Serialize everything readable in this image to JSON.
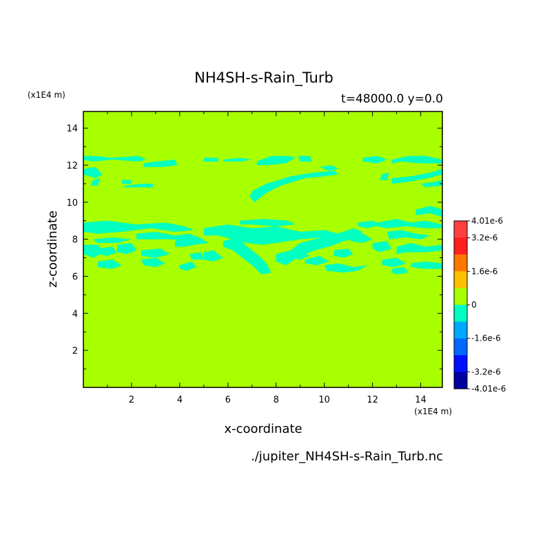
{
  "chart_data": {
    "type": "heatmap",
    "title": "NH4SH-s-Rain_Turb",
    "subtitle": "t=48000.0 y=0.0",
    "xlabel": "x-coordinate",
    "ylabel": "z-coordinate",
    "x_unit": "(x1E4 m)",
    "y_unit": "(x1E4 m)",
    "xlim": [
      0.0,
      14.9
    ],
    "ylim": [
      0.0,
      14.9
    ],
    "x_ticks": [
      2,
      4,
      6,
      8,
      10,
      12,
      14
    ],
    "y_ticks": [
      2,
      4,
      6,
      8,
      10,
      12,
      14
    ],
    "source_file": "./jupiter_NH4SH-s-Rain_Turb.nc",
    "background_level": "0",
    "colorbar": {
      "levels": [
        "4.01e-6",
        "3.2e-6",
        "1.6e-6",
        "0",
        "-1.6e-6",
        "-3.2e-6",
        "-4.01e-6"
      ],
      "level_values": [
        4.01e-06,
        3.2e-06,
        1.6e-06,
        0,
        -1.6e-06,
        -3.2e-06,
        -4.01e-06
      ],
      "colors": [
        "#ff4040",
        "#ff2020",
        "#ff7800",
        "#ffc000",
        "#a8ff00",
        "#00ffc0",
        "#00a8ff",
        "#0068ff",
        "#0010ff",
        "#0000a0"
      ]
    },
    "colors": {
      "zero_band": "#a8ff00",
      "negative_band": "#00ffc0"
    },
    "negative_regions": [
      {
        "x": [
          0.0,
          0.5,
          1.2,
          2.3,
          2.6,
          2.3,
          1.2,
          0.4,
          0.0
        ],
        "z": [
          12.5,
          12.5,
          12.4,
          12.5,
          12.3,
          12.2,
          12.3,
          12.2,
          12.3
        ]
      },
      {
        "x": [
          2.5,
          3.0,
          3.8,
          3.9,
          3.3,
          2.5
        ],
        "z": [
          12.1,
          12.2,
          12.3,
          12.0,
          11.9,
          11.9
        ]
      },
      {
        "x": [
          0.0,
          0.5,
          0.8,
          0.5,
          0.0
        ],
        "z": [
          11.8,
          11.9,
          11.5,
          11.3,
          11.5
        ]
      },
      {
        "x": [
          0.4,
          0.7,
          0.6,
          0.3
        ],
        "z": [
          11.2,
          11.3,
          10.9,
          10.9
        ]
      },
      {
        "x": [
          1.6,
          2.0,
          2.0,
          1.6
        ],
        "z": [
          11.2,
          11.2,
          11.0,
          11.0
        ]
      },
      {
        "x": [
          1.7,
          2.5,
          2.9,
          2.9,
          2.3,
          1.7
        ],
        "z": [
          10.9,
          11.0,
          11.0,
          10.8,
          10.8,
          10.8
        ]
      },
      {
        "x": [
          5.0,
          5.6,
          5.6,
          5.0
        ],
        "z": [
          12.4,
          12.4,
          12.2,
          12.2
        ]
      },
      {
        "x": [
          5.8,
          6.5,
          7.0,
          6.5,
          5.8
        ],
        "z": [
          12.3,
          12.4,
          12.3,
          12.2,
          12.2
        ]
      },
      {
        "x": [
          7.2,
          7.8,
          8.5,
          8.8,
          8.4,
          7.6,
          7.2
        ],
        "z": [
          12.2,
          12.5,
          12.5,
          12.4,
          12.1,
          12.0,
          12.0
        ]
      },
      {
        "x": [
          8.9,
          9.4,
          9.5,
          9.0
        ],
        "z": [
          12.5,
          12.5,
          12.2,
          12.2
        ]
      },
      {
        "x": [
          7.0,
          7.6,
          8.6,
          9.6,
          10.4,
          10.6,
          10.0,
          9.2,
          8.2,
          7.6,
          7.1,
          6.9
        ],
        "z": [
          10.6,
          11.0,
          11.4,
          11.6,
          11.7,
          11.5,
          11.4,
          11.3,
          10.9,
          10.5,
          10.0,
          10.3
        ]
      },
      {
        "x": [
          9.8,
          10.3,
          10.6,
          10.2
        ],
        "z": [
          11.9,
          12.0,
          11.8,
          11.7
        ]
      },
      {
        "x": [
          11.6,
          12.2,
          12.6,
          12.2,
          11.6
        ],
        "z": [
          12.4,
          12.5,
          12.3,
          12.1,
          12.2
        ]
      },
      {
        "x": [
          12.8,
          13.5,
          14.2,
          14.9,
          14.9,
          14.0,
          13.2,
          12.8
        ],
        "z": [
          12.3,
          12.5,
          12.5,
          12.3,
          12.1,
          12.1,
          12.2,
          12.1
        ]
      },
      {
        "x": [
          12.4,
          12.7,
          12.6,
          12.3
        ],
        "z": [
          11.5,
          11.6,
          11.2,
          11.2
        ]
      },
      {
        "x": [
          12.8,
          13.6,
          14.4,
          14.9,
          14.9,
          14.3,
          13.5,
          12.8
        ],
        "z": [
          11.3,
          11.4,
          11.6,
          11.8,
          11.5,
          11.3,
          11.1,
          11.0
        ]
      },
      {
        "x": [
          14.0,
          14.6,
          14.9,
          14.9,
          14.2
        ],
        "z": [
          11.0,
          11.1,
          11.2,
          10.9,
          10.8
        ]
      },
      {
        "x": [
          0.0,
          1.0,
          2.2,
          3.4,
          4.2,
          4.6,
          3.8,
          2.8,
          1.6,
          0.6,
          0.0
        ],
        "z": [
          8.9,
          9.0,
          8.8,
          8.9,
          8.7,
          8.5,
          8.4,
          8.6,
          8.4,
          8.3,
          8.4
        ]
      },
      {
        "x": [
          0.4,
          1.2,
          2.0,
          1.4,
          0.6
        ],
        "z": [
          8.0,
          8.1,
          8.0,
          7.8,
          7.8
        ]
      },
      {
        "x": [
          0.0,
          0.6,
          0.9,
          0.4,
          0.0
        ],
        "z": [
          7.7,
          7.7,
          7.3,
          7.0,
          7.2
        ]
      },
      {
        "x": [
          0.6,
          1.2,
          1.4,
          1.0,
          0.6
        ],
        "z": [
          7.5,
          7.6,
          7.3,
          7.1,
          7.2
        ]
      },
      {
        "x": [
          1.4,
          2.0,
          2.2,
          1.8,
          1.4
        ],
        "z": [
          7.7,
          7.8,
          7.4,
          7.2,
          7.3
        ]
      },
      {
        "x": [
          0.6,
          1.2,
          1.6,
          1.2,
          0.6
        ],
        "z": [
          6.8,
          6.9,
          6.6,
          6.4,
          6.5
        ]
      },
      {
        "x": [
          2.4,
          3.2,
          3.6,
          3.0,
          2.4
        ],
        "z": [
          7.4,
          7.5,
          7.2,
          7.0,
          7.1
        ]
      },
      {
        "x": [
          2.4,
          3.0,
          3.4,
          3.0,
          2.5
        ],
        "z": [
          6.9,
          7.0,
          6.7,
          6.5,
          6.6
        ]
      },
      {
        "x": [
          3.8,
          4.4,
          4.8,
          5.2,
          4.6,
          4.2,
          3.8
        ],
        "z": [
          7.9,
          8.2,
          8.1,
          7.8,
          7.7,
          7.6,
          7.6
        ]
      },
      {
        "x": [
          2.2,
          3.0,
          3.8,
          4.4,
          5.0,
          4.4,
          3.6,
          2.6,
          2.2
        ],
        "z": [
          8.3,
          8.4,
          8.2,
          8.3,
          8.0,
          7.9,
          8.0,
          8.0,
          8.0
        ]
      },
      {
        "x": [
          4.4,
          4.9,
          5.0,
          4.5
        ],
        "z": [
          7.2,
          7.3,
          6.9,
          6.9
        ]
      },
      {
        "x": [
          4.0,
          4.5,
          4.7,
          4.3,
          4.0
        ],
        "z": [
          6.6,
          6.8,
          6.5,
          6.3,
          6.4
        ]
      },
      {
        "x": [
          5.0,
          6.0,
          7.0,
          8.0,
          9.0,
          10.0,
          10.6,
          10.0,
          9.0,
          8.0,
          7.4,
          6.8,
          6.2,
          5.6,
          5.0
        ],
        "z": [
          8.6,
          8.8,
          8.6,
          8.7,
          8.4,
          8.5,
          8.3,
          8.1,
          8.0,
          7.8,
          7.7,
          7.8,
          8.0,
          8.2,
          8.2
        ]
      },
      {
        "x": [
          5.8,
          6.4,
          6.8,
          7.2,
          7.6,
          7.8,
          7.4,
          7.0,
          6.6,
          6.2,
          5.8
        ],
        "z": [
          7.9,
          8.1,
          7.6,
          7.2,
          6.7,
          6.2,
          6.1,
          6.6,
          7.0,
          7.4,
          7.6
        ]
      },
      {
        "x": [
          5.0,
          5.4,
          5.8,
          5.4,
          5.0
        ],
        "z": [
          7.3,
          7.4,
          7.0,
          6.8,
          6.9
        ]
      },
      {
        "x": [
          6.5,
          7.5,
          8.5,
          8.8,
          8.0,
          7.0,
          6.5
        ],
        "z": [
          9.0,
          9.1,
          9.0,
          8.8,
          8.7,
          8.8,
          8.8
        ]
      },
      {
        "x": [
          8.0,
          8.6,
          9.0,
          9.6,
          10.2,
          10.8,
          11.2,
          11.6,
          11.4,
          10.8,
          10.2,
          9.6,
          9.0,
          8.4,
          8.0
        ],
        "z": [
          7.2,
          7.4,
          7.8,
          8.0,
          8.2,
          8.4,
          8.6,
          8.4,
          8.1,
          7.9,
          7.6,
          7.4,
          7.1,
          6.6,
          6.8
        ]
      },
      {
        "x": [
          8.6,
          9.0,
          9.4,
          9.0,
          8.6
        ],
        "z": [
          7.3,
          7.4,
          7.1,
          6.9,
          7.0
        ]
      },
      {
        "x": [
          9.2,
          9.8,
          10.2,
          9.7,
          9.2
        ],
        "z": [
          6.9,
          7.1,
          6.8,
          6.6,
          6.7
        ]
      },
      {
        "x": [
          10.4,
          11.0,
          11.2,
          10.8,
          10.4
        ],
        "z": [
          7.4,
          7.5,
          7.2,
          7.0,
          7.1
        ]
      },
      {
        "x": [
          10.0,
          10.6,
          11.2,
          11.8,
          11.4,
          10.8,
          10.1
        ],
        "z": [
          6.6,
          6.7,
          6.5,
          6.6,
          6.3,
          6.2,
          6.3
        ]
      },
      {
        "x": [
          11.0,
          11.6,
          12.0,
          11.6,
          11.1
        ],
        "z": [
          8.1,
          8.3,
          8.0,
          7.8,
          7.9
        ]
      },
      {
        "x": [
          11.4,
          12.0,
          12.4,
          11.8,
          11.4
        ],
        "z": [
          8.9,
          9.0,
          8.8,
          8.6,
          8.7
        ]
      },
      {
        "x": [
          12.2,
          13.0,
          13.6,
          14.2,
          14.9,
          14.9,
          14.2,
          13.4,
          12.6,
          12.2
        ],
        "z": [
          8.9,
          9.1,
          8.9,
          9.0,
          8.8,
          8.6,
          8.6,
          8.7,
          8.6,
          8.7
        ]
      },
      {
        "x": [
          13.8,
          14.4,
          14.9,
          14.9,
          14.4,
          13.8
        ],
        "z": [
          9.6,
          9.8,
          9.6,
          9.2,
          9.4,
          9.3
        ]
      },
      {
        "x": [
          12.6,
          13.2,
          13.8,
          14.4,
          14.0,
          13.4,
          12.7
        ],
        "z": [
          8.4,
          8.5,
          8.3,
          8.2,
          8.0,
          8.1,
          8.0
        ]
      },
      {
        "x": [
          12.0,
          12.6,
          12.8,
          12.3,
          12.0
        ],
        "z": [
          7.8,
          7.9,
          7.5,
          7.3,
          7.5
        ]
      },
      {
        "x": [
          13.0,
          13.6,
          14.2,
          14.9,
          14.9,
          14.2,
          13.4,
          13.0
        ],
        "z": [
          7.6,
          7.8,
          7.6,
          7.7,
          7.4,
          7.3,
          7.3,
          7.2
        ]
      },
      {
        "x": [
          12.4,
          13.0,
          13.4,
          12.9,
          12.4
        ],
        "z": [
          6.9,
          7.0,
          6.7,
          6.5,
          6.6
        ]
      },
      {
        "x": [
          13.6,
          14.2,
          14.9,
          14.9,
          14.2,
          13.6
        ],
        "z": [
          6.7,
          6.8,
          6.7,
          6.4,
          6.4,
          6.5
        ]
      },
      {
        "x": [
          12.8,
          13.3,
          13.5,
          13.0,
          12.8
        ],
        "z": [
          6.4,
          6.5,
          6.2,
          6.1,
          6.2
        ]
      }
    ]
  }
}
